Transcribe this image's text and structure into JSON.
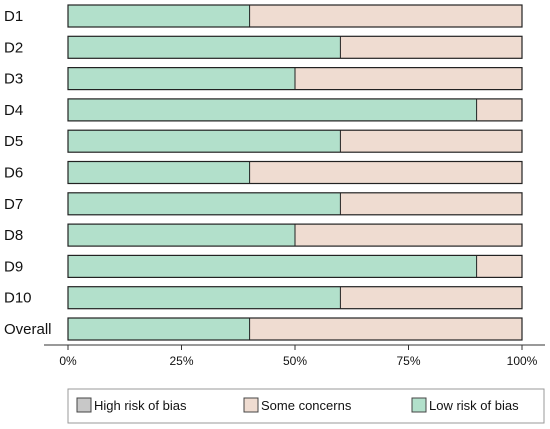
{
  "chart_data": {
    "type": "bar",
    "orientation": "horizontal",
    "stacked": true,
    "percent_scale": true,
    "categories": [
      "D1",
      "D2",
      "D3",
      "D4",
      "D5",
      "D6",
      "D7",
      "D8",
      "D9",
      "D10",
      "Overall"
    ],
    "series": [
      {
        "name": "High risk of bias",
        "color": "#c8c8c8",
        "values": [
          0,
          0,
          0,
          0,
          0,
          0,
          0,
          0,
          0,
          0,
          0
        ]
      },
      {
        "name": "Some concerns",
        "color": "#efdcd1",
        "values": [
          60,
          40,
          50,
          10,
          40,
          60,
          40,
          50,
          10,
          40,
          60
        ]
      },
      {
        "name": "Low risk of bias",
        "color": "#b2e0cb",
        "values": [
          40,
          60,
          50,
          90,
          60,
          40,
          60,
          50,
          90,
          60,
          40
        ]
      }
    ],
    "xlim": [
      0,
      100
    ],
    "xticks": [
      "0%",
      "25%",
      "50%",
      "75%",
      "100%"
    ],
    "xtick_values": [
      0,
      25,
      50,
      75,
      100
    ],
    "grid": false,
    "legend_position": "bottom"
  }
}
